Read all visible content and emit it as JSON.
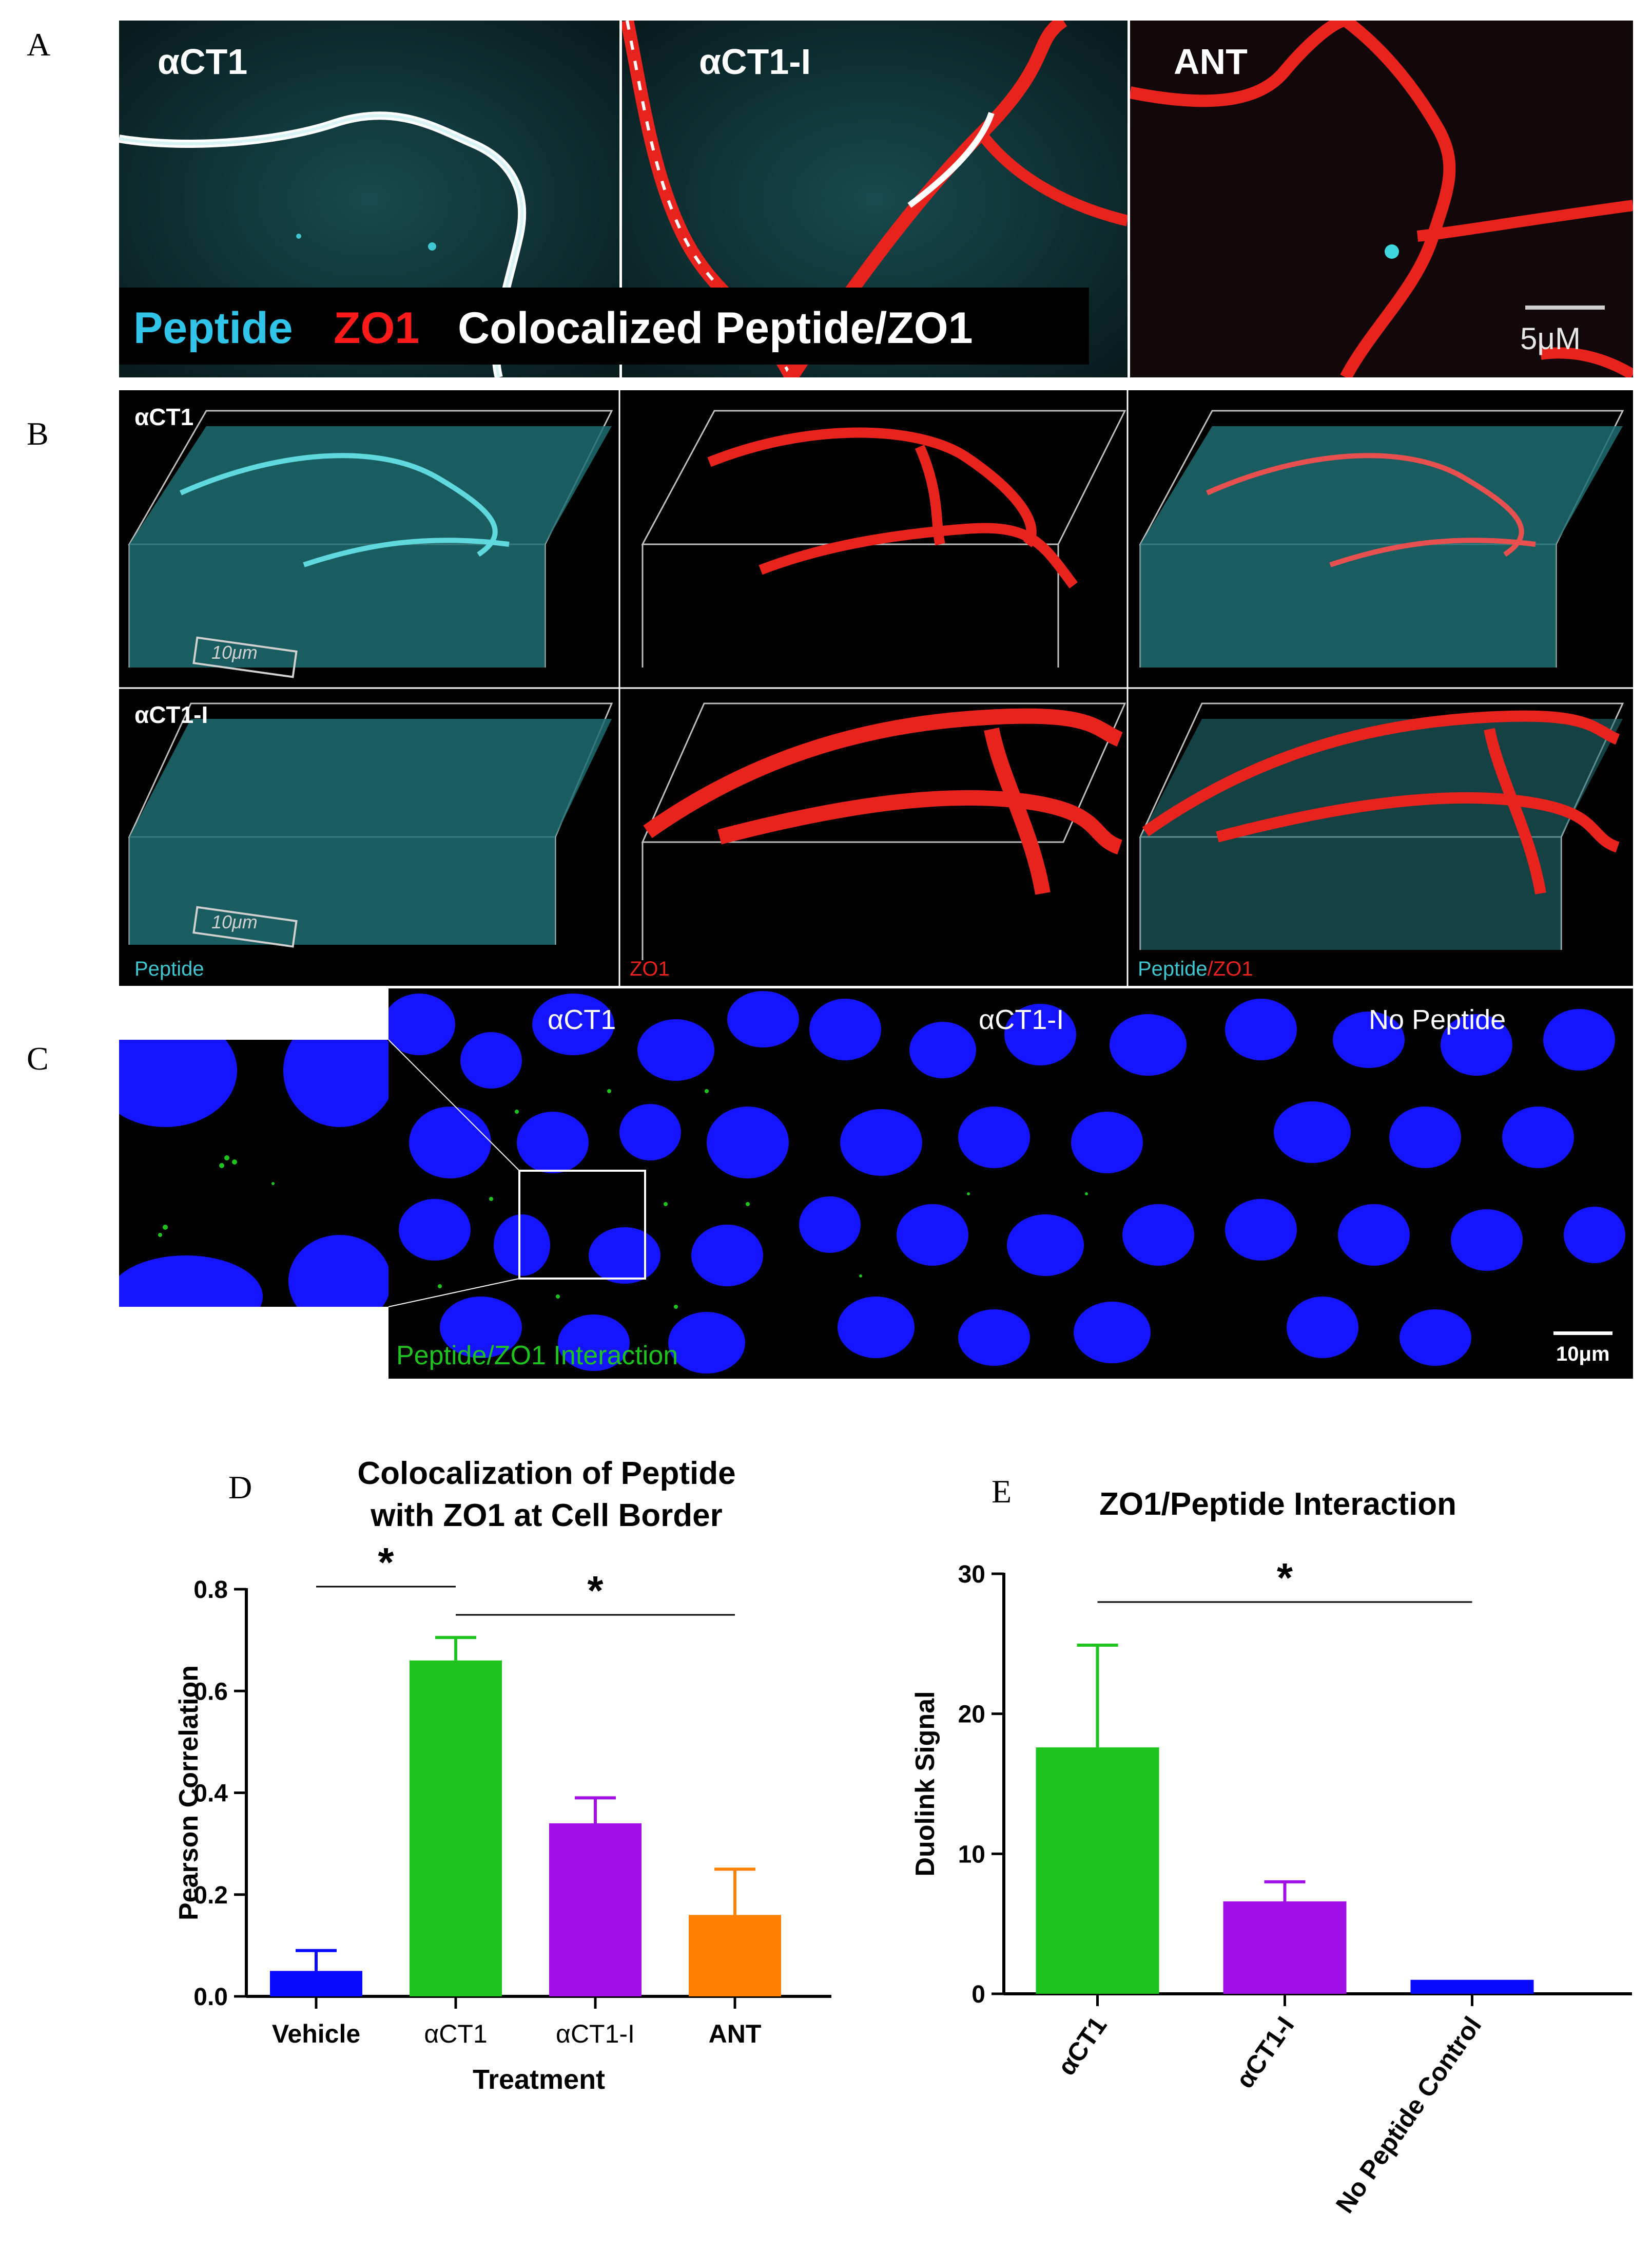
{
  "panels": {
    "a": {
      "label": "A",
      "tiles": [
        "αCT1",
        "αCT1-I",
        "ANT"
      ],
      "legend": {
        "peptide": "Peptide",
        "zo1": "ZO1",
        "coloc": "Colocalized Peptide/ZO1"
      },
      "scale": "5μM"
    },
    "b": {
      "label": "B",
      "row1": "αCT1",
      "row2": "αCT1-I",
      "scale1": "10μm",
      "scale2": "10μm",
      "chan_peptide": "Peptide",
      "chan_zo1": "ZO1",
      "chan_merge_peptide": "Peptide",
      "chan_merge_slash": "/",
      "chan_merge_zo1": "ZO1"
    },
    "c": {
      "label": "C",
      "tiles": [
        "αCT1",
        "αCT1-I",
        "No Peptide"
      ],
      "caption": "Peptide/ZO1 Interaction",
      "scale": "10μm"
    },
    "d": {
      "label": "D"
    },
    "e": {
      "label": "E"
    }
  },
  "colors": {
    "cyan": "#3fc6d1",
    "red": "#e8231d",
    "nucleus": "#1414ff",
    "green": "#1ec31e",
    "purple": "#a10ee8",
    "orange": "#ff8000",
    "blue": "#0a0aff"
  },
  "chart_data": [
    {
      "type": "bar",
      "title_lines": [
        "Colocalization of  Peptide",
        "with  ZO1 at  Cell Border"
      ],
      "xlabel": "Treatment",
      "ylabel": "Pearson Correlation",
      "categories": [
        "Vehicle",
        "αCT1",
        "αCT1-I",
        "ANT"
      ],
      "values": [
        0.05,
        0.66,
        0.34,
        0.16
      ],
      "errors": [
        0.04,
        0.045,
        0.05,
        0.09
      ],
      "colors": [
        "#0a0aff",
        "#1ec31e",
        "#a10ee8",
        "#ff8000"
      ],
      "ylim": [
        0,
        0.8
      ],
      "yticks": [
        0.0,
        0.2,
        0.4,
        0.6,
        0.8
      ],
      "ytick_labels": [
        "0.0",
        "0.2",
        "0.4",
        "0.6",
        "0.8"
      ],
      "significance": [
        {
          "from": "Vehicle",
          "to": "αCT1",
          "label": "*"
        },
        {
          "from": "αCT1",
          "to": "ANT",
          "label": "*"
        }
      ]
    },
    {
      "type": "bar",
      "title_lines": [
        "ZO1/Peptide Interaction"
      ],
      "xlabel": "",
      "ylabel": "Duolink Signal",
      "categories": [
        "αCT1",
        "αCT1-I",
        "No Peptide Control"
      ],
      "values": [
        17.6,
        6.6,
        1.0
      ],
      "errors": [
        7.3,
        1.4,
        0
      ],
      "colors": [
        "#1ec31e",
        "#a10ee8",
        "#0a0aff"
      ],
      "ylim": [
        0,
        30
      ],
      "yticks": [
        0,
        10,
        20,
        30
      ],
      "ytick_labels": [
        "0",
        "10",
        "20",
        "30"
      ],
      "significance": [
        {
          "from": "αCT1",
          "to": "No Peptide Control",
          "label": "*"
        }
      ]
    }
  ]
}
